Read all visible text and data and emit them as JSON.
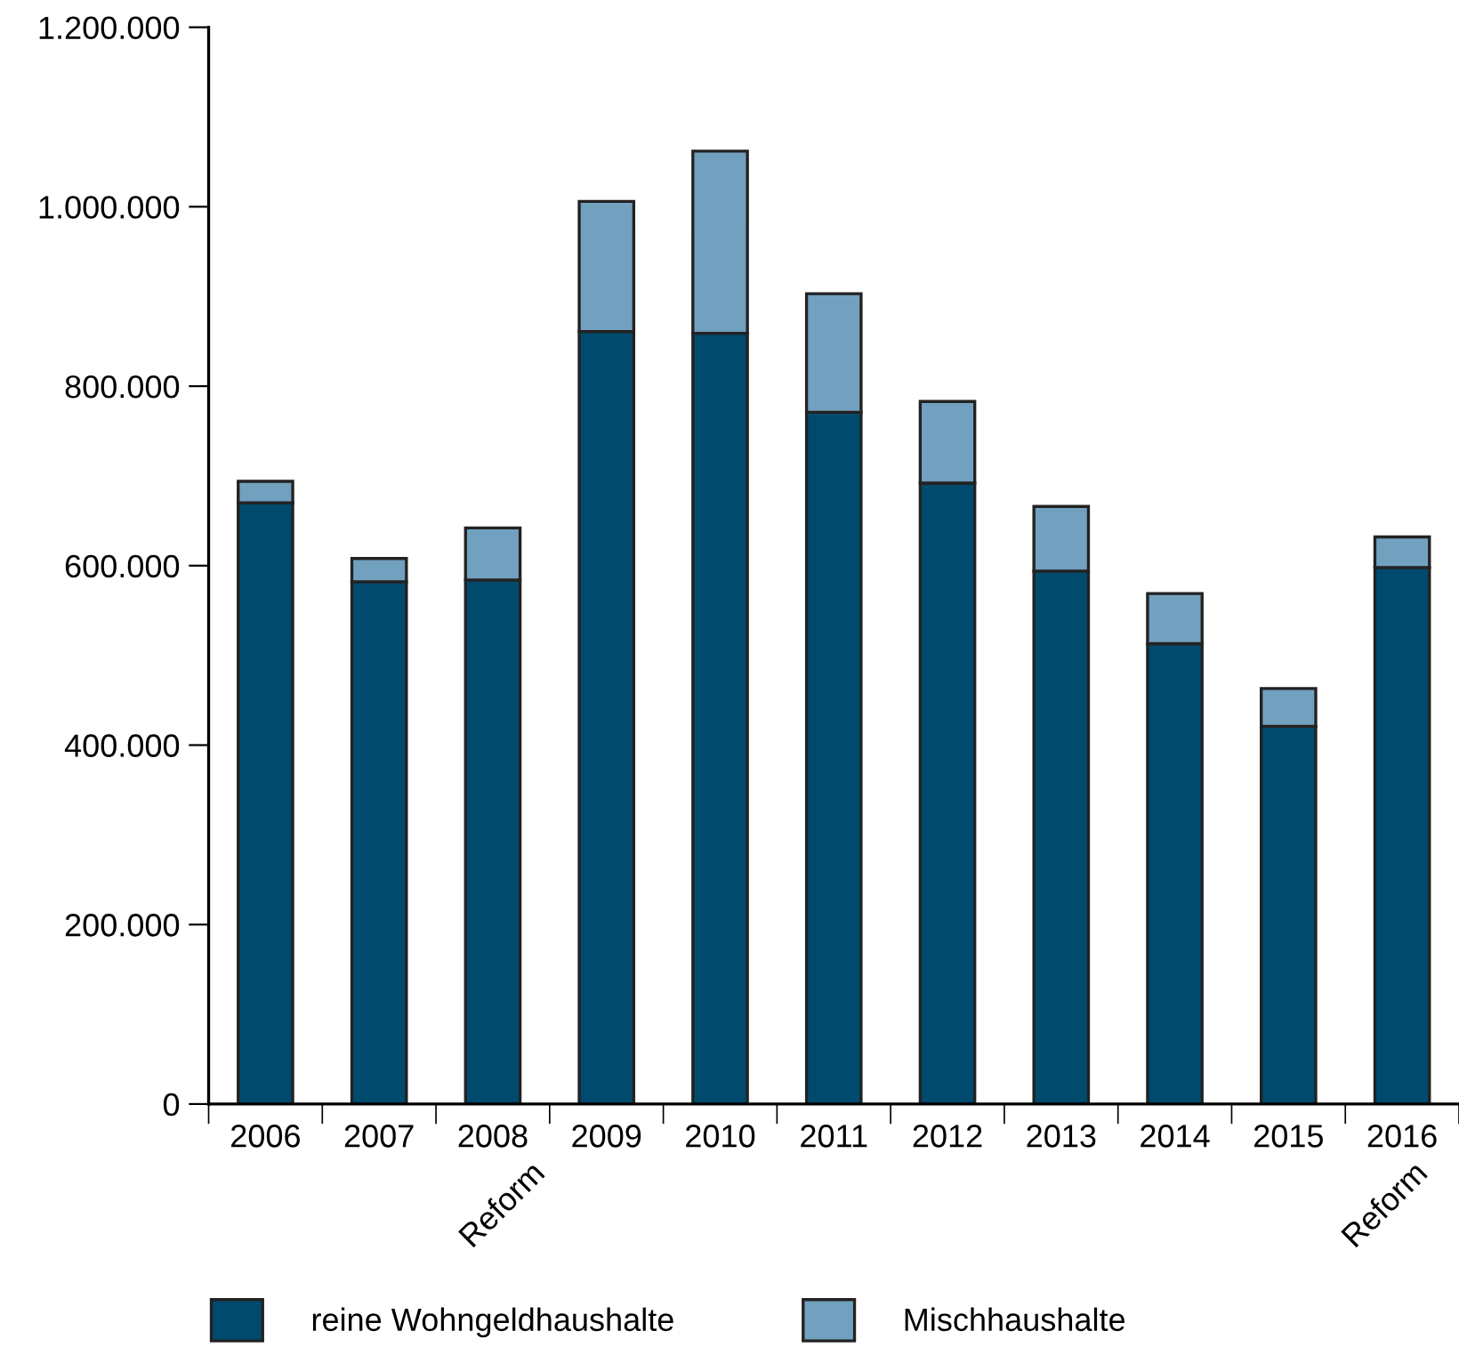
{
  "chart_data": {
    "type": "bar",
    "stacked": true,
    "categories": [
      "2006",
      "2007",
      "2008",
      "2009",
      "2010",
      "2011",
      "2012",
      "2013",
      "2014",
      "2015",
      "2016"
    ],
    "series": [
      {
        "name": "reine Wohngeldhaushalte",
        "color": "#004a6e",
        "values": [
          670000,
          582000,
          584000,
          861000,
          859000,
          771000,
          692000,
          594000,
          513000,
          421000,
          598000
        ]
      },
      {
        "name": "Mischhaushalte",
        "color": "#72a0bf",
        "values": [
          24000,
          26000,
          58000,
          145000,
          203000,
          132000,
          91000,
          72000,
          56000,
          42000,
          34000
        ]
      }
    ],
    "ylim": [
      0,
      1200000
    ],
    "yticks": [
      {
        "value": 0,
        "label": "0"
      },
      {
        "value": 200000,
        "label": "200.000"
      },
      {
        "value": 400000,
        "label": "400.000"
      },
      {
        "value": 600000,
        "label": "600.000"
      },
      {
        "value": 800000,
        "label": "800.000"
      },
      {
        "value": 1000000,
        "label": "1.000.000"
      },
      {
        "value": 1200000,
        "label": "1.200.000"
      }
    ],
    "annotations": [
      "Reform",
      "Reform"
    ],
    "grid": false,
    "legend": "bottom"
  }
}
